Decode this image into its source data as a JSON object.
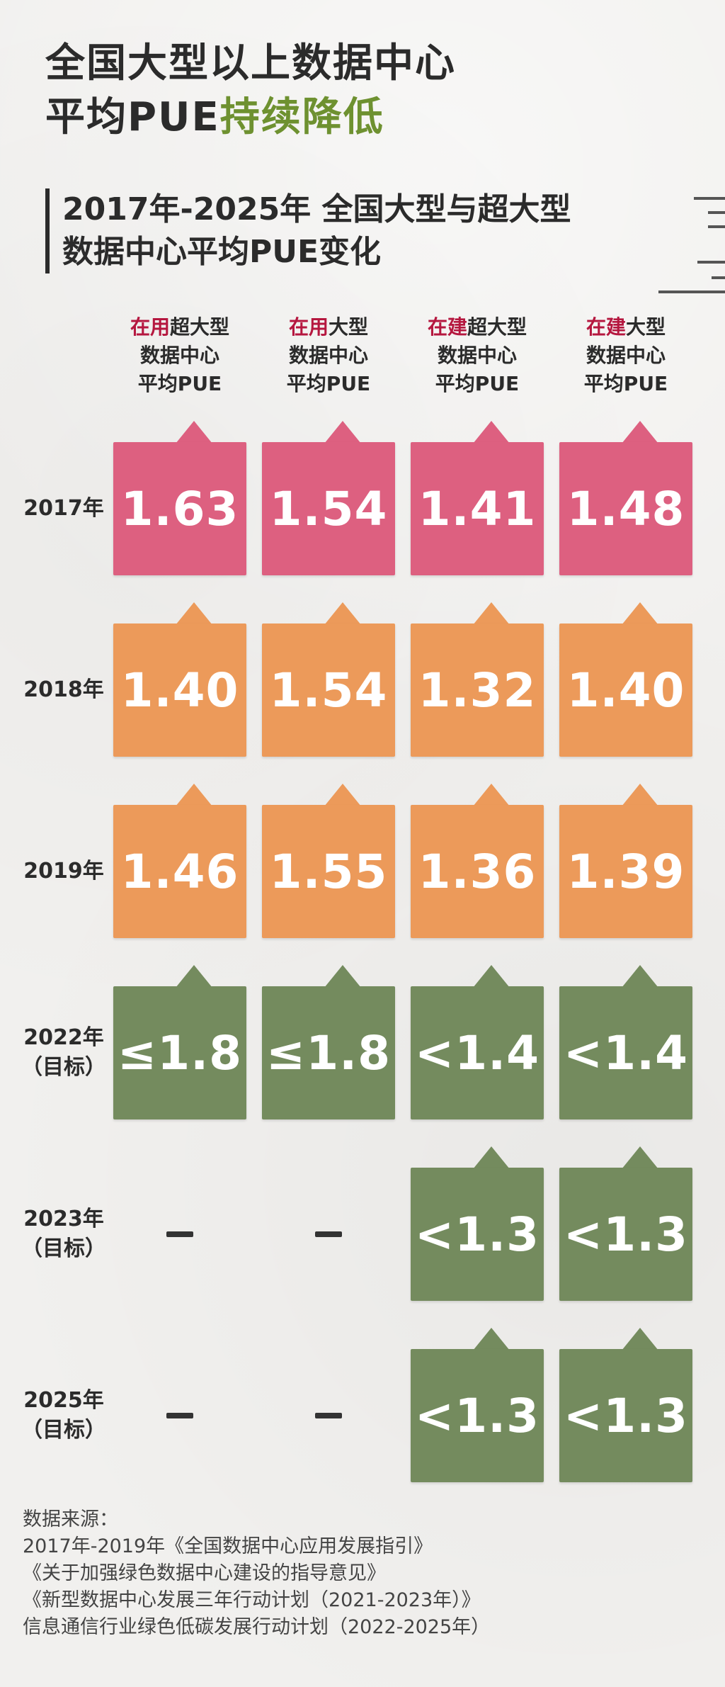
{
  "title": {
    "line1": "全国大型以上数据中心",
    "line2_prefix": "平均PUE",
    "line2_accent": "持续降低"
  },
  "chart_data": {
    "type": "table",
    "title": "2017年-2025年 全国大型与超大型数据中心平均PUE变化",
    "subtitle_line1": "2017年-2025年 全国大型与超大型",
    "subtitle_line2": "数据中心平均PUE变化",
    "columns": [
      {
        "accent": "在用",
        "type_label": "超大型",
        "line2": "数据中心",
        "line3": "平均PUE"
      },
      {
        "accent": "在用",
        "type_label": "大型",
        "line2": "数据中心",
        "line3": "平均PUE"
      },
      {
        "accent": "在建",
        "type_label": "超大型",
        "line2": "数据中心",
        "line3": "平均PUE"
      },
      {
        "accent": "在建",
        "type_label": "大型",
        "line2": "数据中心",
        "line3": "平均PUE"
      }
    ],
    "rows": [
      {
        "label": "2017年",
        "sublabel": "",
        "values": [
          "1.63",
          "1.54",
          "1.41",
          "1.48"
        ]
      },
      {
        "label": "2018年",
        "sublabel": "",
        "values": [
          "1.40",
          "1.54",
          "1.32",
          "1.40"
        ]
      },
      {
        "label": "2019年",
        "sublabel": "",
        "values": [
          "1.46",
          "1.55",
          "1.36",
          "1.39"
        ]
      },
      {
        "label": "2022年",
        "sublabel": "（目标）",
        "values": [
          "≤1.8",
          "≤1.8",
          "<1.4",
          "<1.4"
        ]
      },
      {
        "label": "2023年",
        "sublabel": "（目标）",
        "values": [
          null,
          null,
          "<1.3",
          "<1.3"
        ]
      },
      {
        "label": "2025年",
        "sublabel": "（目标）",
        "values": [
          null,
          null,
          "<1.3",
          "<1.3"
        ]
      }
    ]
  },
  "colors": {
    "row_fill": [
      "#dd6080",
      "#ec9a5a",
      "#ec9a5a",
      "#748b5e",
      "#748b5e",
      "#748b5e"
    ],
    "accent_red": "#b5173f",
    "accent_green": "#6e9130"
  },
  "source": {
    "heading": "数据来源：",
    "lines": [
      "2017年-2019年《全国数据中心应用发展指引》",
      "《关于加强绿色数据中心建设的指导意见》",
      "《新型数据中心发展三年行动计划（2021-2023年）》",
      "信息通信行业绿色低碳发展行动计划（2022-2025年）"
    ]
  }
}
